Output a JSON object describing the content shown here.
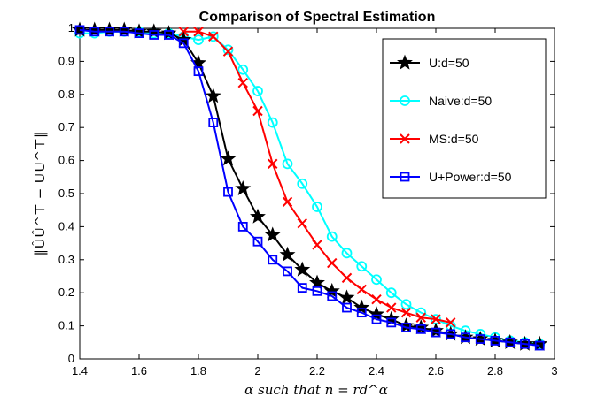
{
  "chart_data": {
    "type": "line",
    "title": "Comparison of Spectral Estimation",
    "xlabel": "α such that n = rd^α",
    "ylabel": "‖ÛÛ^⊤ − UU^⊤‖",
    "xlim": [
      1.4,
      3.0
    ],
    "ylim": [
      0,
      1
    ],
    "xticks": [
      "1.4",
      "1.6",
      "1.8",
      "2",
      "2.2",
      "2.4",
      "2.6",
      "2.8",
      "3"
    ],
    "yticks": [
      "0",
      "0.1",
      "0.2",
      "0.3",
      "0.4",
      "0.5",
      "0.6",
      "0.7",
      "0.8",
      "0.9",
      "1"
    ],
    "grid": false,
    "legend_position": "top-right",
    "series": [
      {
        "name": "U:d=50",
        "color": "#000000",
        "marker": "star",
        "x": [
          1.4,
          1.45,
          1.5,
          1.55,
          1.6,
          1.65,
          1.7,
          1.75,
          1.8,
          1.85,
          1.9,
          1.95,
          2.0,
          2.05,
          2.1,
          2.15,
          2.2,
          2.25,
          2.3,
          2.35,
          2.4,
          2.45,
          2.5,
          2.55,
          2.6,
          2.65,
          2.7,
          2.75,
          2.8,
          2.85,
          2.9,
          2.95
        ],
        "values": [
          0.995,
          0.995,
          0.995,
          0.995,
          0.99,
          0.99,
          0.985,
          0.965,
          0.895,
          0.795,
          0.605,
          0.515,
          0.43,
          0.375,
          0.315,
          0.27,
          0.23,
          0.205,
          0.185,
          0.155,
          0.135,
          0.12,
          0.1,
          0.095,
          0.085,
          0.075,
          0.065,
          0.06,
          0.055,
          0.05,
          0.045,
          0.045
        ]
      },
      {
        "name": "Naive:d=50",
        "color": "#00ffff",
        "marker": "circle",
        "x": [
          1.4,
          1.45,
          1.5,
          1.55,
          1.6,
          1.65,
          1.7,
          1.75,
          1.8,
          1.85,
          1.9,
          1.95,
          2.0,
          2.05,
          2.1,
          2.15,
          2.2,
          2.25,
          2.3,
          2.35,
          2.4,
          2.45,
          2.5,
          2.55,
          2.6,
          2.65,
          2.7,
          2.75,
          2.8,
          2.85,
          2.9,
          2.95
        ],
        "values": [
          0.985,
          0.985,
          0.99,
          0.99,
          0.99,
          0.985,
          0.985,
          0.975,
          0.965,
          0.975,
          0.935,
          0.875,
          0.81,
          0.715,
          0.59,
          0.53,
          0.46,
          0.37,
          0.32,
          0.28,
          0.24,
          0.2,
          0.165,
          0.14,
          0.12,
          0.1,
          0.085,
          0.075,
          0.065,
          0.055,
          0.05,
          0.045
        ]
      },
      {
        "name": "MS:d=50",
        "color": "#ff0000",
        "marker": "x",
        "x": [
          1.75,
          1.8,
          1.85,
          1.9,
          1.95,
          2.0,
          2.05,
          2.1,
          2.15,
          2.2,
          2.25,
          2.3,
          2.35,
          2.4,
          2.45,
          2.5,
          2.55,
          2.6,
          2.65
        ],
        "values": [
          0.99,
          0.99,
          0.975,
          0.93,
          0.835,
          0.75,
          0.59,
          0.475,
          0.41,
          0.345,
          0.29,
          0.245,
          0.21,
          0.18,
          0.155,
          0.14,
          0.125,
          0.12,
          0.11
        ]
      },
      {
        "name": "U+Power:d=50",
        "color": "#0000ff",
        "marker": "square",
        "x": [
          1.4,
          1.45,
          1.5,
          1.55,
          1.6,
          1.65,
          1.7,
          1.75,
          1.8,
          1.85,
          1.9,
          1.95,
          2.0,
          2.05,
          2.1,
          2.15,
          2.2,
          2.25,
          2.3,
          2.35,
          2.4,
          2.45,
          2.5,
          2.55,
          2.6,
          2.65,
          2.7,
          2.75,
          2.8,
          2.85,
          2.9,
          2.95
        ],
        "values": [
          0.995,
          0.99,
          0.99,
          0.99,
          0.985,
          0.98,
          0.98,
          0.955,
          0.87,
          0.715,
          0.505,
          0.4,
          0.355,
          0.3,
          0.265,
          0.215,
          0.205,
          0.19,
          0.155,
          0.14,
          0.12,
          0.11,
          0.095,
          0.09,
          0.08,
          0.075,
          0.065,
          0.06,
          0.055,
          0.05,
          0.045,
          0.04
        ]
      }
    ]
  }
}
